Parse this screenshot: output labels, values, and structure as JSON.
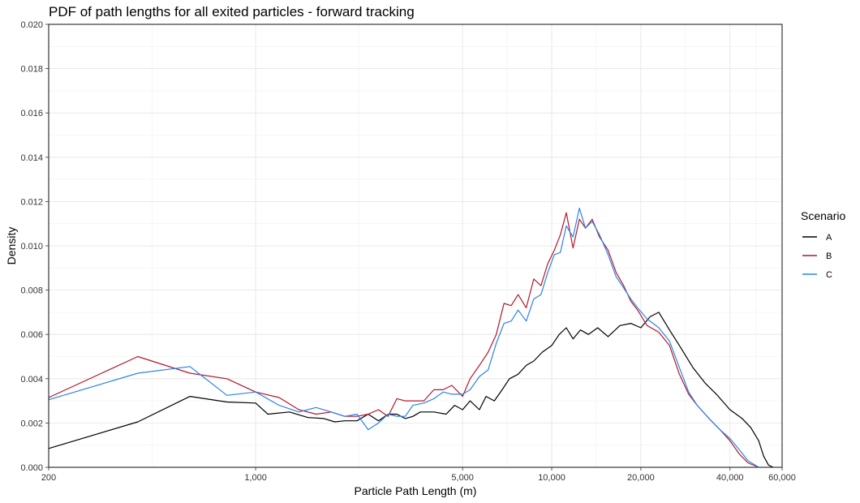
{
  "chart_data": {
    "type": "line",
    "title": "PDF of path lengths for all exited particles - forward tracking",
    "xlabel": "Particle Path Length (m)",
    "ylabel": "Density",
    "x_scale": "log",
    "xlim": [
      200,
      60000
    ],
    "ylim": [
      0,
      0.02
    ],
    "x_ticks": [
      200,
      1000,
      5000,
      10000,
      20000,
      40000,
      60000
    ],
    "x_tick_labels": [
      "200",
      "1,000",
      "5,000",
      "10,000",
      "20,000",
      "40,000",
      "60,000"
    ],
    "y_ticks": [
      0,
      0.002,
      0.004,
      0.006,
      0.008,
      0.01,
      0.012,
      0.014,
      0.016,
      0.018,
      0.02
    ],
    "y_tick_labels": [
      "0.000",
      "0.002",
      "0.004",
      "0.006",
      "0.008",
      "0.010",
      "0.012",
      "0.014",
      "0.016",
      "0.018",
      "0.020"
    ],
    "grid": true,
    "legend": {
      "title": "Scenario",
      "position": "right"
    },
    "series": [
      {
        "name": "A",
        "color": "#000000",
        "points": [
          [
            200,
            0.00085
          ],
          [
            400,
            0.00205
          ],
          [
            600,
            0.0032
          ],
          [
            800,
            0.00295
          ],
          [
            1000,
            0.0029
          ],
          [
            1100,
            0.0024
          ],
          [
            1300,
            0.0025
          ],
          [
            1500,
            0.00225
          ],
          [
            1700,
            0.0022
          ],
          [
            1850,
            0.00205
          ],
          [
            2000,
            0.0021
          ],
          [
            2200,
            0.0021
          ],
          [
            2400,
            0.0024
          ],
          [
            2600,
            0.0021
          ],
          [
            2800,
            0.0024
          ],
          [
            3000,
            0.0024
          ],
          [
            3200,
            0.0022
          ],
          [
            3400,
            0.0023
          ],
          [
            3600,
            0.0025
          ],
          [
            4000,
            0.0025
          ],
          [
            4400,
            0.0024
          ],
          [
            4700,
            0.0028
          ],
          [
            5000,
            0.0026
          ],
          [
            5300,
            0.003
          ],
          [
            5700,
            0.0026
          ],
          [
            6000,
            0.0032
          ],
          [
            6400,
            0.003
          ],
          [
            6800,
            0.0035
          ],
          [
            7200,
            0.004
          ],
          [
            7700,
            0.0042
          ],
          [
            8200,
            0.0046
          ],
          [
            8700,
            0.0048
          ],
          [
            9300,
            0.0052
          ],
          [
            10000,
            0.0055
          ],
          [
            10600,
            0.006
          ],
          [
            11200,
            0.0063
          ],
          [
            11800,
            0.0058
          ],
          [
            12500,
            0.0062
          ],
          [
            13300,
            0.006
          ],
          [
            14300,
            0.0063
          ],
          [
            15500,
            0.0059
          ],
          [
            17000,
            0.0064
          ],
          [
            18500,
            0.0065
          ],
          [
            20000,
            0.0063
          ],
          [
            21500,
            0.0068
          ],
          [
            23000,
            0.007
          ],
          [
            25000,
            0.0062
          ],
          [
            27000,
            0.0055
          ],
          [
            30000,
            0.0045
          ],
          [
            33000,
            0.0038
          ],
          [
            36000,
            0.0033
          ],
          [
            40000,
            0.0026
          ],
          [
            44000,
            0.0022
          ],
          [
            47000,
            0.0018
          ],
          [
            50000,
            0.0012
          ],
          [
            52000,
            0.0005
          ],
          [
            54000,
            0.0001
          ],
          [
            56000,
            0.0
          ]
        ]
      },
      {
        "name": "B",
        "color": "#b2182b",
        "points": [
          [
            200,
            0.00315
          ],
          [
            400,
            0.005
          ],
          [
            600,
            0.00425
          ],
          [
            800,
            0.004
          ],
          [
            1000,
            0.0034
          ],
          [
            1200,
            0.00315
          ],
          [
            1400,
            0.0026
          ],
          [
            1600,
            0.0024
          ],
          [
            1800,
            0.0025
          ],
          [
            2000,
            0.0023
          ],
          [
            2200,
            0.0023
          ],
          [
            2400,
            0.0024
          ],
          [
            2600,
            0.0026
          ],
          [
            2800,
            0.0023
          ],
          [
            3000,
            0.0031
          ],
          [
            3200,
            0.003
          ],
          [
            3400,
            0.003
          ],
          [
            3700,
            0.003
          ],
          [
            4000,
            0.0035
          ],
          [
            4300,
            0.0035
          ],
          [
            4600,
            0.0037
          ],
          [
            5000,
            0.0032
          ],
          [
            5300,
            0.004
          ],
          [
            5700,
            0.0046
          ],
          [
            6100,
            0.0052
          ],
          [
            6500,
            0.006
          ],
          [
            6900,
            0.0074
          ],
          [
            7300,
            0.0073
          ],
          [
            7700,
            0.0078
          ],
          [
            8200,
            0.0072
          ],
          [
            8700,
            0.0085
          ],
          [
            9200,
            0.0082
          ],
          [
            9700,
            0.0092
          ],
          [
            10200,
            0.0098
          ],
          [
            10700,
            0.0105
          ],
          [
            11200,
            0.0115
          ],
          [
            11800,
            0.0099
          ],
          [
            12400,
            0.0112
          ],
          [
            13000,
            0.0108
          ],
          [
            13700,
            0.0112
          ],
          [
            14500,
            0.0104
          ],
          [
            15500,
            0.0098
          ],
          [
            16500,
            0.0088
          ],
          [
            17500,
            0.0082
          ],
          [
            18500,
            0.0075
          ],
          [
            19500,
            0.0071
          ],
          [
            21000,
            0.0064
          ],
          [
            23000,
            0.0061
          ],
          [
            25000,
            0.0055
          ],
          [
            27000,
            0.0042
          ],
          [
            29000,
            0.0033
          ],
          [
            31000,
            0.0028
          ],
          [
            34000,
            0.0022
          ],
          [
            37000,
            0.0017
          ],
          [
            40000,
            0.0012
          ],
          [
            43000,
            0.0006
          ],
          [
            46000,
            0.0002
          ],
          [
            50000,
            0.0
          ]
        ]
      },
      {
        "name": "C",
        "color": "#2c83e6",
        "points": [
          [
            200,
            0.00305
          ],
          [
            400,
            0.00425
          ],
          [
            600,
            0.00455
          ],
          [
            800,
            0.00325
          ],
          [
            1000,
            0.0034
          ],
          [
            1200,
            0.0028
          ],
          [
            1400,
            0.0025
          ],
          [
            1600,
            0.0027
          ],
          [
            1800,
            0.0025
          ],
          [
            2000,
            0.0023
          ],
          [
            2200,
            0.0024
          ],
          [
            2400,
            0.0017
          ],
          [
            2600,
            0.002
          ],
          [
            2800,
            0.0024
          ],
          [
            3000,
            0.0023
          ],
          [
            3200,
            0.0023
          ],
          [
            3400,
            0.0028
          ],
          [
            3700,
            0.0029
          ],
          [
            4000,
            0.0031
          ],
          [
            4300,
            0.0034
          ],
          [
            4600,
            0.0033
          ],
          [
            5000,
            0.0033
          ],
          [
            5300,
            0.0035
          ],
          [
            5700,
            0.0041
          ],
          [
            6100,
            0.0044
          ],
          [
            6500,
            0.0056
          ],
          [
            6900,
            0.0065
          ],
          [
            7300,
            0.0066
          ],
          [
            7700,
            0.0071
          ],
          [
            8200,
            0.0066
          ],
          [
            8700,
            0.0076
          ],
          [
            9200,
            0.0078
          ],
          [
            9700,
            0.0088
          ],
          [
            10200,
            0.0096
          ],
          [
            10700,
            0.0097
          ],
          [
            11200,
            0.0109
          ],
          [
            11800,
            0.0104
          ],
          [
            12400,
            0.0117
          ],
          [
            13000,
            0.0108
          ],
          [
            13700,
            0.0111
          ],
          [
            14500,
            0.0105
          ],
          [
            15500,
            0.0096
          ],
          [
            16500,
            0.0086
          ],
          [
            17500,
            0.0081
          ],
          [
            18500,
            0.0076
          ],
          [
            19500,
            0.0072
          ],
          [
            21000,
            0.0067
          ],
          [
            23000,
            0.0063
          ],
          [
            25000,
            0.0057
          ],
          [
            27000,
            0.0045
          ],
          [
            29000,
            0.0034
          ],
          [
            31000,
            0.0028
          ],
          [
            34000,
            0.0022
          ],
          [
            37000,
            0.0017
          ],
          [
            40000,
            0.0013
          ],
          [
            43000,
            0.0008
          ],
          [
            46000,
            0.0003
          ],
          [
            50000,
            0.0
          ]
        ]
      }
    ]
  }
}
